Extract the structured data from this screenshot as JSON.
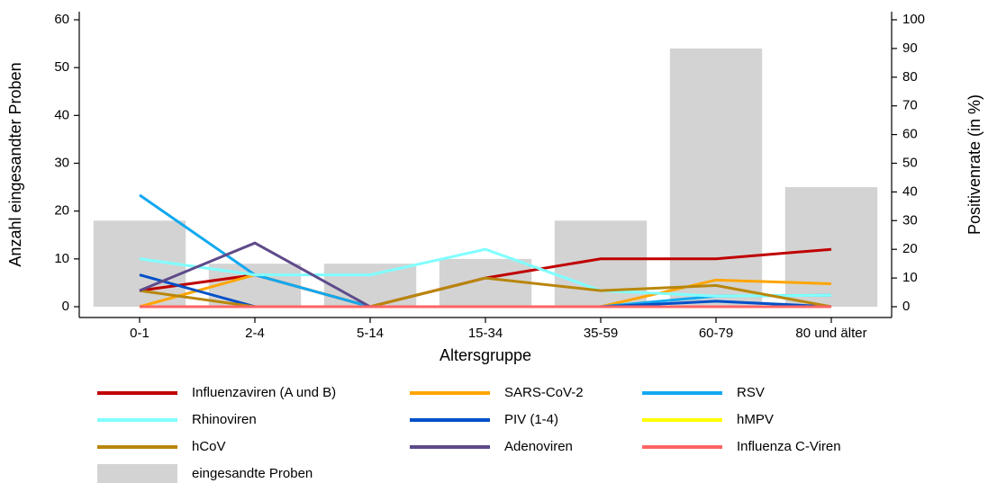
{
  "chart_data": {
    "type": "combo",
    "x_label": "Altersgruppe",
    "y_label": "Anzahl eingesandter Proben",
    "y2_label": "Positivenrate (in %)",
    "categories": [
      "0-1",
      "2-4",
      "5-14",
      "15-34",
      "35-59",
      "60-79",
      "80 und älter"
    ],
    "ylim": [
      0,
      60
    ],
    "yticks": [
      0,
      10,
      20,
      30,
      40,
      50,
      60
    ],
    "y2lim": [
      0,
      100
    ],
    "y2ticks": [
      0,
      10,
      20,
      30,
      40,
      50,
      60,
      70,
      80,
      90,
      100
    ],
    "series": [
      {
        "name": "Influenzaviren (A und B)",
        "type": "line",
        "axis": "y2",
        "color": "#c00000",
        "values": [
          5.6,
          11.1,
          0,
          10,
          16.7,
          16.7,
          20
        ]
      },
      {
        "name": "SARS-CoV-2",
        "type": "line",
        "axis": "y2",
        "color": "#ffa500",
        "values": [
          0,
          11.1,
          0,
          0,
          0,
          9.3,
          8
        ]
      },
      {
        "name": "RSV",
        "type": "line",
        "axis": "y2",
        "color": "#12a8f0",
        "values": [
          38.9,
          11.1,
          0,
          0,
          0,
          3.7,
          4
        ]
      },
      {
        "name": "Rhinoviren",
        "type": "line",
        "axis": "y2",
        "color": "#80ffff",
        "values": [
          16.7,
          11.1,
          11.1,
          20,
          5.6,
          3.7,
          4
        ]
      },
      {
        "name": "PIV (1-4)",
        "type": "line",
        "axis": "y2",
        "color": "#0050c8",
        "values": [
          11.1,
          0,
          0,
          0,
          0,
          1.9,
          0
        ]
      },
      {
        "name": "hMPV",
        "type": "line",
        "axis": "y2",
        "color": "#ffff00",
        "values": [
          0,
          0,
          0,
          0,
          0,
          0,
          0
        ]
      },
      {
        "name": "hCoV",
        "type": "line",
        "axis": "y2",
        "color": "#b8860b",
        "values": [
          5.6,
          0,
          0,
          10,
          5.6,
          7.4,
          0
        ]
      },
      {
        "name": "Adenoviren",
        "type": "line",
        "axis": "y2",
        "color": "#5e4a8a",
        "values": [
          5.6,
          22.2,
          0,
          0,
          0,
          0,
          0
        ]
      },
      {
        "name": "Influenza C-Viren",
        "type": "line",
        "axis": "y2",
        "color": "#ff6464",
        "values": [
          0,
          0,
          0,
          0,
          0,
          0,
          0
        ]
      },
      {
        "name": "eingesandte Proben",
        "type": "bar",
        "axis": "y",
        "color": "#d3d3d3",
        "values": [
          18,
          9,
          9,
          10,
          18,
          54,
          25
        ]
      }
    ]
  }
}
